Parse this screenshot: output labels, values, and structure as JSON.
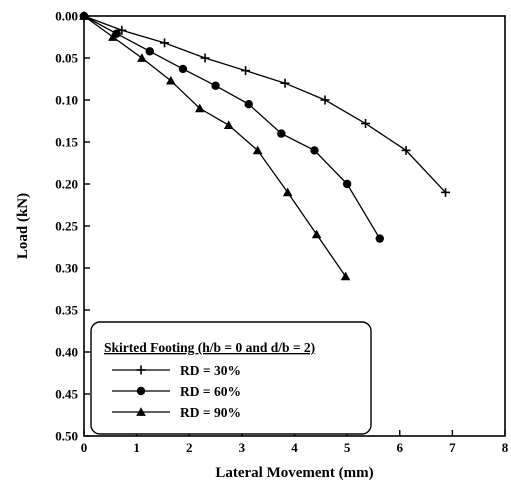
{
  "chart_data": {
    "type": "line",
    "xlabel": "Lateral Movement (mm)",
    "ylabel": "Load (kN)",
    "xlim": [
      0,
      8
    ],
    "ylim": [
      0,
      0.5
    ],
    "y_inverted": true,
    "x_ticks": [
      0,
      1,
      2,
      3,
      4,
      5,
      6,
      7,
      8
    ],
    "y_ticks": [
      "0.00",
      "0.05",
      "0.10",
      "0.15",
      "0.20",
      "0.25",
      "0.30",
      "0.35",
      "0.40",
      "0.45",
      "0.50"
    ],
    "grid": false,
    "legend": {
      "title": "Skirted Footing (h/b = 0 and d/b = 2)",
      "placement": "bottom-left"
    },
    "series": [
      {
        "name": "RD = 30%",
        "marker": "plus",
        "x": [
          0,
          0.72,
          1.53,
          2.3,
          3.07,
          3.82,
          4.58,
          5.35,
          6.12,
          6.87
        ],
        "y": [
          0,
          0.017,
          0.032,
          0.05,
          0.065,
          0.08,
          0.1,
          0.128,
          0.16,
          0.21
        ]
      },
      {
        "name": "RD = 60%",
        "marker": "circle",
        "x": [
          0,
          0.62,
          1.25,
          1.88,
          2.5,
          3.13,
          3.75,
          4.38,
          5.0,
          5.62
        ],
        "y": [
          0,
          0.021,
          0.042,
          0.063,
          0.083,
          0.105,
          0.14,
          0.16,
          0.2,
          0.265
        ]
      },
      {
        "name": "RD = 90%",
        "marker": "triangle",
        "x": [
          0,
          0.55,
          1.1,
          1.65,
          2.2,
          2.75,
          3.3,
          3.87,
          4.42,
          4.97
        ],
        "y": [
          0,
          0.025,
          0.05,
          0.077,
          0.11,
          0.13,
          0.16,
          0.21,
          0.26,
          0.31
        ]
      }
    ]
  }
}
